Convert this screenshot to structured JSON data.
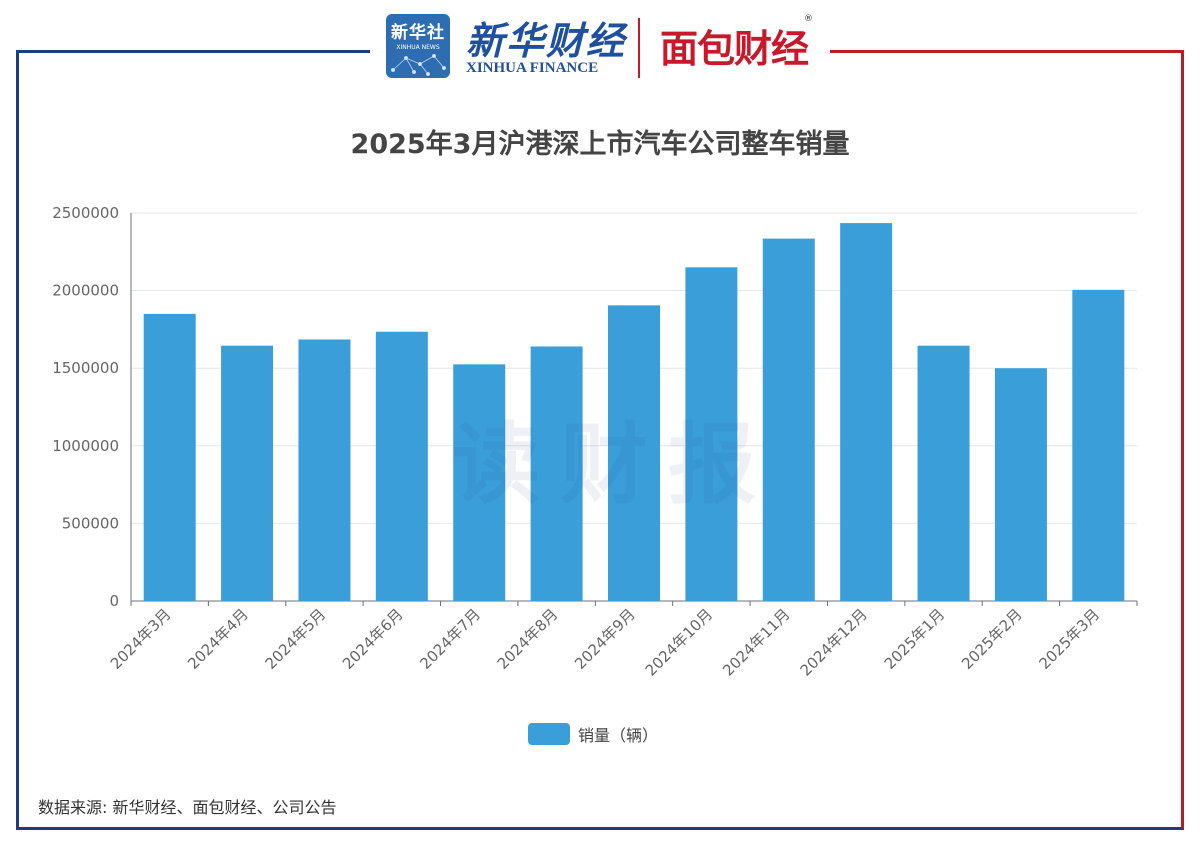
{
  "header": {
    "xinhua_badge_cn": "新华社",
    "xinhua_badge_en": "XINHUA NEWS",
    "finance_cn": "新华财经",
    "finance_en": "XINHUA FINANCE",
    "mianbao_logo": "面包财经",
    "registered_mark": "®"
  },
  "watermark": "读财报",
  "source_text": "数据来源: 新华财经、面包财经、公司公告",
  "colors": {
    "bar": "#3a9fd9",
    "frame_blue": "#1f3d7a",
    "frame_red": "#b81c2a",
    "grid": "#e3e6ec"
  },
  "chart_data": {
    "type": "bar",
    "title": "2025年3月沪港深上市汽车公司整车销量",
    "xlabel": "",
    "ylabel": "",
    "categories": [
      "2024年3月",
      "2024年4月",
      "2024年5月",
      "2024年6月",
      "2024年7月",
      "2024年8月",
      "2024年9月",
      "2024年10月",
      "2024年11月",
      "2024年12月",
      "2025年1月",
      "2025年2月",
      "2025年3月"
    ],
    "series": [
      {
        "name": "销量（辆）",
        "values": [
          1850000,
          1645000,
          1685000,
          1735000,
          1525000,
          1640000,
          1905000,
          2150000,
          2335000,
          2435000,
          1645000,
          1500000,
          2005000
        ]
      }
    ],
    "yticks": [
      "0",
      "500000",
      "1000000",
      "1500000",
      "2000000",
      "2500000"
    ],
    "ylim": [
      0,
      2500000
    ],
    "grid": true,
    "legend_position": "bottom-center"
  }
}
